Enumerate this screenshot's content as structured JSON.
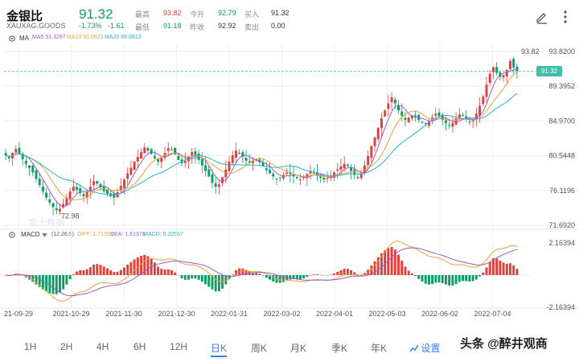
{
  "header": {
    "title": "金银比",
    "code": "XAUXAG.GOODS",
    "price": "91.32",
    "change_pct": "-1.73%",
    "change_abs": "-1.61",
    "stats": [
      {
        "label": "最高",
        "value": "93.82",
        "color": "#e0403a"
      },
      {
        "label": "最低",
        "value": "91.18",
        "color": "#0a9e62"
      },
      {
        "label": "今开",
        "value": "92.79",
        "color": "#0a9e62"
      },
      {
        "label": "昨收",
        "value": "92.92",
        "color": "#333333"
      },
      {
        "label": "买入",
        "value": "91.32",
        "color": "#333333"
      },
      {
        "label": "卖出",
        "value": "0.00",
        "color": "#333333"
      }
    ],
    "icons": [
      "edit-icon",
      "more-icon"
    ]
  },
  "ma_legend": {
    "label": "MA",
    "items": [
      {
        "text": "MA5 91.3297",
        "color": "#9b59d0"
      },
      {
        "text": "MA10 91.0623",
        "color": "#e7a23b"
      },
      {
        "text": "MA20 89.0612",
        "color": "#2ab0c9"
      }
    ]
  },
  "macd_legend": {
    "label": "MACD",
    "params": "(12,26,9)",
    "items": [
      {
        "text": "DIFF: 1.71553",
        "color": "#e7a23b"
      },
      {
        "text": "DEA: 1.61370",
        "color": "#9b59d0"
      },
      {
        "text": "MACD: 0.20567",
        "color": "#2ab0c9"
      }
    ]
  },
  "current_price_tag": "91.32",
  "watermark_logo": "金十数据",
  "tabs": [
    {
      "label": "1H"
    },
    {
      "label": "2H"
    },
    {
      "label": "4H"
    },
    {
      "label": "6H"
    },
    {
      "label": "12H"
    },
    {
      "label": "日K",
      "active": true
    },
    {
      "label": "周K"
    },
    {
      "label": "月K"
    },
    {
      "label": "季K"
    },
    {
      "label": "年K"
    }
  ],
  "settings_label": "设置",
  "watermark_text": "头条 @醉井观商",
  "colors": {
    "up": "#e0403a",
    "down": "#0a9e62",
    "accent": "#3a7afe",
    "tag": "#3fbfa8"
  },
  "chart_data": {
    "type": "candlestick",
    "price_axis": {
      "ticks": [
        93.82,
        89.3952,
        84.97,
        80.5448,
        76.1196,
        71.692
      ],
      "ylim": [
        71.692,
        93.82
      ],
      "high_label": "93.82",
      "low_label": "72.98"
    },
    "macd_axis": {
      "ticks": [
        2.16394,
        -2.16394
      ],
      "ylim": [
        -2.16394,
        2.16394
      ]
    },
    "x_labels": [
      "21-09-29",
      "2021-10-29",
      "2021-11-30",
      "2021-12-30",
      "2022-01-31",
      "2022-03-02",
      "2022-04-01",
      "2022-05-03",
      "2022-06-02",
      "2022-07-04"
    ],
    "close_series": [
      80.6,
      80.2,
      80.9,
      81.4,
      80.8,
      80.1,
      79.5,
      79.0,
      78.4,
      77.6,
      76.8,
      76.0,
      75.2,
      74.6,
      74.0,
      73.6,
      73.8,
      74.4,
      75.2,
      76.0,
      76.6,
      76.2,
      75.8,
      75.4,
      75.9,
      76.6,
      77.3,
      77.0,
      76.5,
      76.0,
      75.7,
      75.4,
      75.2,
      75.9,
      76.7,
      77.5,
      78.3,
      79.0,
      79.8,
      80.4,
      81.0,
      81.6,
      81.2,
      80.8,
      80.2,
      79.8,
      80.3,
      80.9,
      81.5,
      81.3,
      80.7,
      80.0,
      79.6,
      79.9,
      80.4,
      81.0,
      80.6,
      80.0,
      79.3,
      78.6,
      77.9,
      77.1,
      76.6,
      76.9,
      77.8,
      78.8,
      79.8,
      80.6,
      81.2,
      80.9,
      80.4,
      79.9,
      79.7,
      79.9,
      80.1,
      79.7,
      79.2,
      78.7,
      78.3,
      77.9,
      77.6,
      77.8,
      78.1,
      78.4,
      78.2,
      77.9,
      77.7,
      77.5,
      77.8,
      78.2,
      78.5,
      78.3,
      78.0,
      77.7,
      77.5,
      77.7,
      78.0,
      78.4,
      78.8,
      79.2,
      79.5,
      79.2,
      78.6,
      78.1,
      77.7,
      78.3,
      79.3,
      80.5,
      81.8,
      82.9,
      84.1,
      85.3,
      86.3,
      87.2,
      88.0,
      87.2,
      86.3,
      85.6,
      85.1,
      85.4,
      85.7,
      85.5,
      85.1,
      84.8,
      84.6,
      84.9,
      85.4,
      85.9,
      85.6,
      85.1,
      84.7,
      84.4,
      84.7,
      85.3,
      85.8,
      85.6,
      85.2,
      84.9,
      85.2,
      85.9,
      86.9,
      88.1,
      89.6,
      91.0,
      91.8,
      91.1,
      90.6,
      90.8,
      91.5,
      92.6,
      91.8,
      91.3
    ]
  }
}
